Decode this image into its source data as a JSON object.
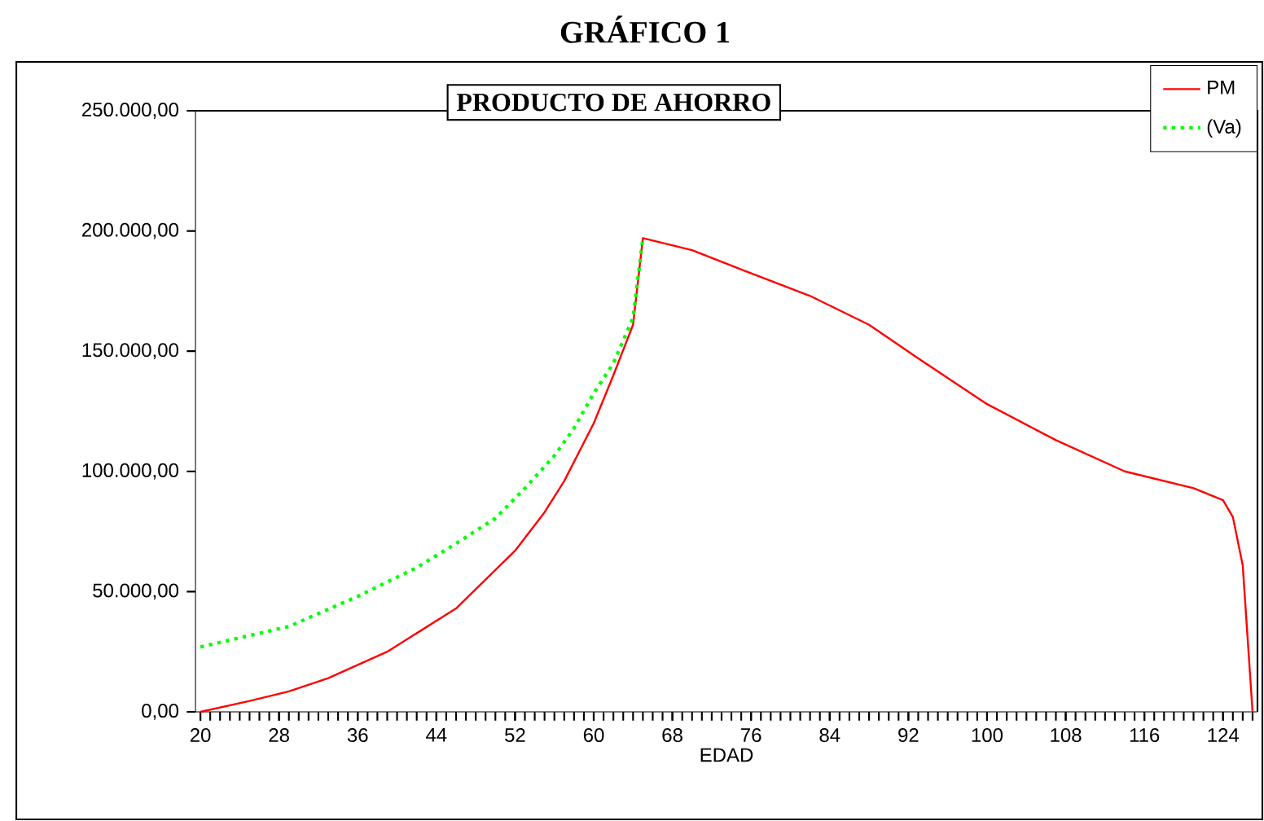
{
  "chart_data": {
    "type": "line",
    "title": "GRÁFICO 1",
    "subtitle": "PRODUCTO DE AHORRO",
    "xlabel": "EDAD",
    "xlim": [
      19.5,
      127.5
    ],
    "xticks": [
      20,
      28,
      36,
      44,
      52,
      60,
      68,
      76,
      84,
      92,
      100,
      108,
      116,
      124
    ],
    "ylim": [
      0,
      250000
    ],
    "yticks": [
      {
        "value": 0,
        "label": "0,00"
      },
      {
        "value": 50000,
        "label": "50.000,00"
      },
      {
        "value": 100000,
        "label": "100.000,00"
      },
      {
        "value": 150000,
        "label": "150.000,00"
      },
      {
        "value": 200000,
        "label": "200.000,00"
      },
      {
        "value": 250000,
        "label": "250.000,00"
      }
    ],
    "legend": "top right",
    "marker": "none",
    "series": [
      {
        "name": "PM",
        "color": "#ff0000",
        "line_style": "solid",
        "x": [
          20,
          25,
          29,
          33,
          39,
          46,
          52,
          55,
          57,
          60,
          62,
          64,
          65,
          70,
          75,
          82,
          88,
          93,
          100,
          107,
          114,
          121,
          124,
          125,
          126,
          127
        ],
        "values": [
          0,
          4500,
          8500,
          14000,
          25000,
          43000,
          67000,
          83000,
          96000,
          120000,
          140000,
          161000,
          197000,
          192000,
          184000,
          173000,
          161000,
          147000,
          128000,
          113000,
          100000,
          93000,
          88000,
          81000,
          61000,
          0
        ]
      },
      {
        "name": "(Va)",
        "color": "#00ff00",
        "line_style": "dotted",
        "x": [
          20,
          29,
          36,
          42,
          46,
          50,
          53,
          56,
          58,
          60,
          62,
          64,
          65
        ],
        "values": [
          27000,
          35500,
          48000,
          60000,
          70000,
          80500,
          93000,
          106500,
          118000,
          132500,
          145000,
          164000,
          197000
        ]
      }
    ]
  }
}
